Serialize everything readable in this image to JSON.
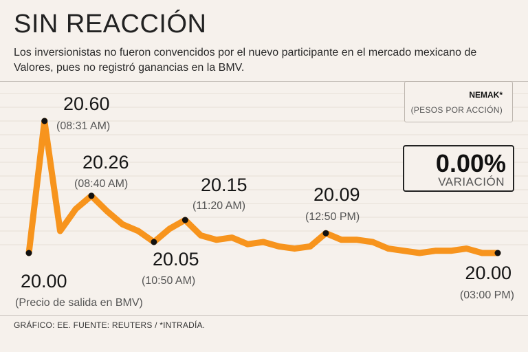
{
  "header": {
    "title": "SIN REACCIÓN",
    "subtitle": "Los inversionistas no fueron convencidos por el nuevo participante en el mercado mexicano de Valores, pues no registró ganancias en la BMV."
  },
  "legend": {
    "ticker": "NEMAK*",
    "unit": "(PESOS POR ACCIÓN)"
  },
  "variation": {
    "value": "0.00%",
    "label": "VARIACIÓN"
  },
  "footer": {
    "source": "GRÁFICO: EE. FUENTE: REUTERS / *INTRADÍA."
  },
  "colors": {
    "line": "#f7941d",
    "background": "#f6f1ec",
    "marker": "#111111"
  },
  "chart_data": {
    "type": "line",
    "title": "SIN REACCIÓN",
    "xlabel": "",
    "ylabel": "Pesos por acción",
    "ylim": [
      20.0,
      20.6
    ],
    "series": [
      {
        "name": "NEMAK*",
        "values": [
          20.0,
          20.6,
          20.1,
          20.2,
          20.26,
          20.19,
          20.13,
          20.1,
          20.05,
          20.11,
          20.15,
          20.08,
          20.06,
          20.07,
          20.04,
          20.05,
          20.03,
          20.02,
          20.03,
          20.09,
          20.06,
          20.06,
          20.05,
          20.02,
          20.01,
          20.0,
          20.01,
          20.01,
          20.02,
          20.0,
          20.0
        ]
      }
    ],
    "annotations": [
      {
        "index": 0,
        "value": "20.00",
        "time": "(Precio de salida en BMV)"
      },
      {
        "index": 1,
        "value": "20.60",
        "time": "(08:31 AM)"
      },
      {
        "index": 4,
        "value": "20.26",
        "time": "(08:40 AM)"
      },
      {
        "index": 8,
        "value": "20.05",
        "time": "(10:50 AM)"
      },
      {
        "index": 10,
        "value": "20.15",
        "time": "(11:20 AM)"
      },
      {
        "index": 19,
        "value": "20.09",
        "time": "(12:50 PM)"
      },
      {
        "index": 30,
        "value": "20.00",
        "time": "(03:00 PM)"
      }
    ]
  }
}
